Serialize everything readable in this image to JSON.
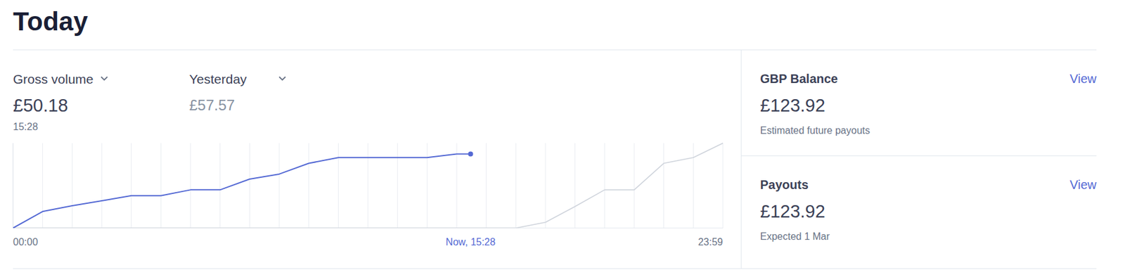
{
  "page_title": "Today",
  "chart_data": {
    "type": "line",
    "series": [
      {
        "name": "Gross volume",
        "color": "#5469d4",
        "marker": "last",
        "x": [
          0,
          1,
          2,
          3,
          4,
          5,
          6,
          7,
          8,
          9,
          10,
          11,
          12,
          13,
          14,
          15,
          15.47
        ],
        "values": [
          0,
          11.2,
          15.1,
          18.5,
          22.0,
          22.0,
          25.9,
          25.9,
          33.2,
          36.6,
          43.9,
          47.8,
          47.8,
          47.8,
          47.8,
          50.18,
          50.18
        ]
      },
      {
        "name": "Yesterday",
        "color": "#cfd4dc",
        "x": [
          0,
          1,
          2,
          3,
          4,
          5,
          6,
          7,
          8,
          9,
          10,
          11,
          12,
          13,
          14,
          15,
          16,
          17,
          18,
          19,
          20,
          21,
          22,
          23,
          24
        ],
        "values": [
          0,
          0,
          0,
          0,
          0,
          0,
          0,
          0,
          0,
          0,
          0,
          0,
          0,
          0,
          0,
          0,
          0,
          0,
          3.9,
          14.6,
          25.9,
          25.9,
          43.9,
          47.8,
          57.57
        ]
      }
    ],
    "xlim": [
      0,
      24
    ],
    "ylim": [
      0,
      57.57
    ],
    "xticks": [
      {
        "value": 0,
        "label": "00:00"
      },
      {
        "value": 15.47,
        "label": "Now, 15:28"
      },
      {
        "value": 24,
        "label": "23:59"
      }
    ],
    "grid": true,
    "tick_labels": "x"
  },
  "chart_summary": {
    "amounts": [
      "£50.18",
      "£57.57"
    ],
    "time": "15:28"
  },
  "panels": [
    {
      "title": "GBP Balance",
      "link": "View",
      "amount": "£123.92",
      "note": "Estimated future payouts"
    },
    {
      "title": "Payouts",
      "link": "View",
      "amount": "£123.92",
      "note": "Expected 1 Mar"
    }
  ]
}
